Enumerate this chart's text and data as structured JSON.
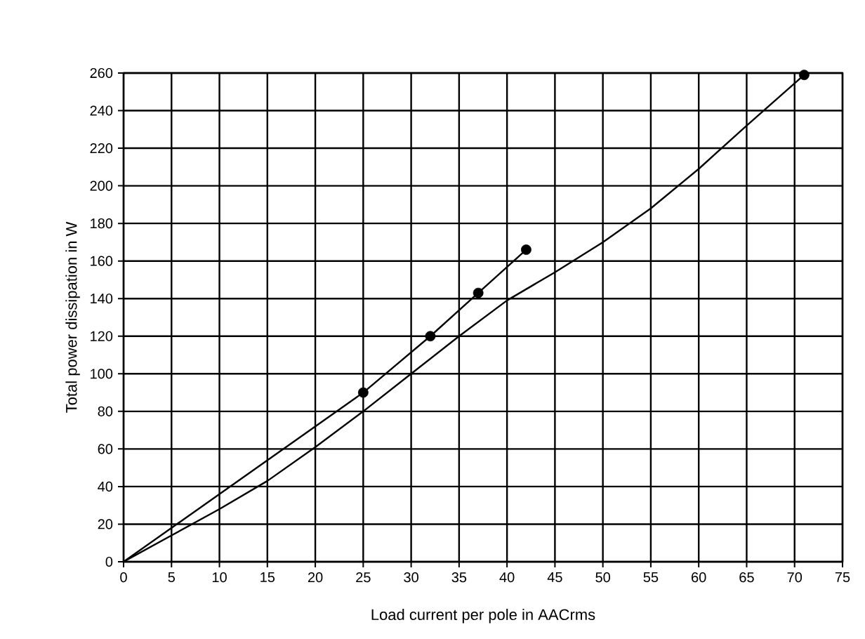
{
  "chart_data": {
    "type": "line",
    "xlabel": "Load current per pole in AACrms",
    "ylabel": "Total power dissipation in W",
    "series": [
      {
        "color": "#000000",
        "x": [
          0,
          25,
          32,
          37,
          42
        ],
        "values": [
          0,
          90,
          120,
          143,
          166
        ]
      },
      {
        "color": "#000000",
        "x": [
          0,
          5,
          10,
          15,
          20,
          25,
          30,
          35,
          40,
          45,
          50,
          55,
          60,
          65,
          71
        ],
        "values": [
          0,
          14,
          28,
          43,
          61,
          80,
          100,
          120,
          139,
          154,
          170,
          188,
          209,
          232,
          259
        ]
      },
      {
        "type": "scatter",
        "color": "#000000",
        "marker": "circle",
        "x": [
          25,
          32,
          37,
          42,
          71
        ],
        "values": [
          90,
          120,
          143,
          166,
          259
        ]
      }
    ],
    "xlim": [
      0,
      75
    ],
    "xticks": [
      0,
      5,
      10,
      15,
      20,
      25,
      30,
      35,
      40,
      45,
      50,
      55,
      60,
      65,
      70,
      75
    ],
    "ylim": [
      0,
      260
    ],
    "yticks": [
      0,
      20,
      40,
      60,
      80,
      100,
      120,
      140,
      160,
      180,
      200,
      220,
      240,
      260
    ],
    "grid": true
  }
}
